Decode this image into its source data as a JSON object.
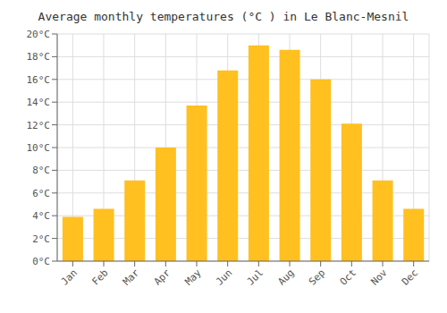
{
  "chart_data": {
    "type": "bar",
    "title": "Average monthly temperatures (°C ) in Le Blanc-Mesnil",
    "categories": [
      "Jan",
      "Feb",
      "Mar",
      "Apr",
      "May",
      "Jun",
      "Jul",
      "Aug",
      "Sep",
      "Oct",
      "Nov",
      "Dec"
    ],
    "values": [
      3.9,
      4.6,
      7.1,
      10.0,
      13.7,
      16.8,
      19.0,
      18.6,
      16.0,
      12.1,
      7.1,
      4.6
    ],
    "color": "#FFC020",
    "ylim": [
      0,
      20
    ],
    "yticks": [
      {
        "value": 0,
        "label": "0°C"
      },
      {
        "value": 2,
        "label": "2°C"
      },
      {
        "value": 4,
        "label": "4°C"
      },
      {
        "value": 6,
        "label": "6°C"
      },
      {
        "value": 8,
        "label": "8°C"
      },
      {
        "value": 10,
        "label": "10°C"
      },
      {
        "value": 12,
        "label": "12°C"
      },
      {
        "value": 14,
        "label": "14°C"
      },
      {
        "value": 16,
        "label": "16°C"
      },
      {
        "value": 18,
        "label": "18°C"
      },
      {
        "value": 20,
        "label": "20°C"
      }
    ],
    "grid": true
  }
}
